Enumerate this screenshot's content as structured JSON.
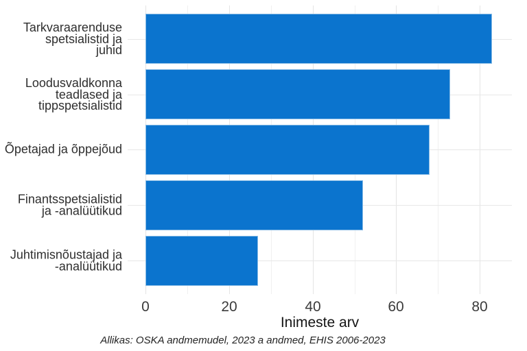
{
  "chart_data": {
    "type": "bar",
    "orientation": "horizontal",
    "title": "",
    "categories": [
      {
        "label": "Tarkvaraarenduse spetsialistid ja juhid",
        "lines": [
          "Tarkvaraarenduse",
          "spetsialistid ja",
          "juhid"
        ]
      },
      {
        "label": "Loodusvaldkonna teadlased ja tippspetsialistid",
        "lines": [
          "Loodusvaldkonna",
          "teadlased ja",
          "tippspetsialistid"
        ]
      },
      {
        "label": "Õpetajad ja õppejõud",
        "lines": [
          "Õpetajad ja õppejõud"
        ]
      },
      {
        "label": "Finantsspetsialistid ja -analüütikud",
        "lines": [
          "Finantsspetsialistid",
          "ja -analüütikud"
        ]
      },
      {
        "label": "Juhtimisnõustajad ja -analüütikud",
        "lines": [
          "Juhtimisnõustajad ja",
          "-analüütikud"
        ]
      }
    ],
    "values": [
      83,
      73,
      68,
      52,
      27
    ],
    "xlabel": "Inimeste arv",
    "ylabel": "",
    "xticks": [
      0,
      20,
      40,
      60,
      80
    ],
    "minor_ticks": [
      10,
      30,
      50,
      70
    ],
    "xlim": [
      -4.3,
      87.7
    ],
    "grid": true,
    "legend": false,
    "bar_color": "#0b74ce",
    "grid_major_color": "#e4e4e4",
    "grid_minor_color": "#f0f0f0",
    "caption": "Allikas: OSKA andmemudel, 2023 a andmed, EHIS 2006-2023"
  }
}
